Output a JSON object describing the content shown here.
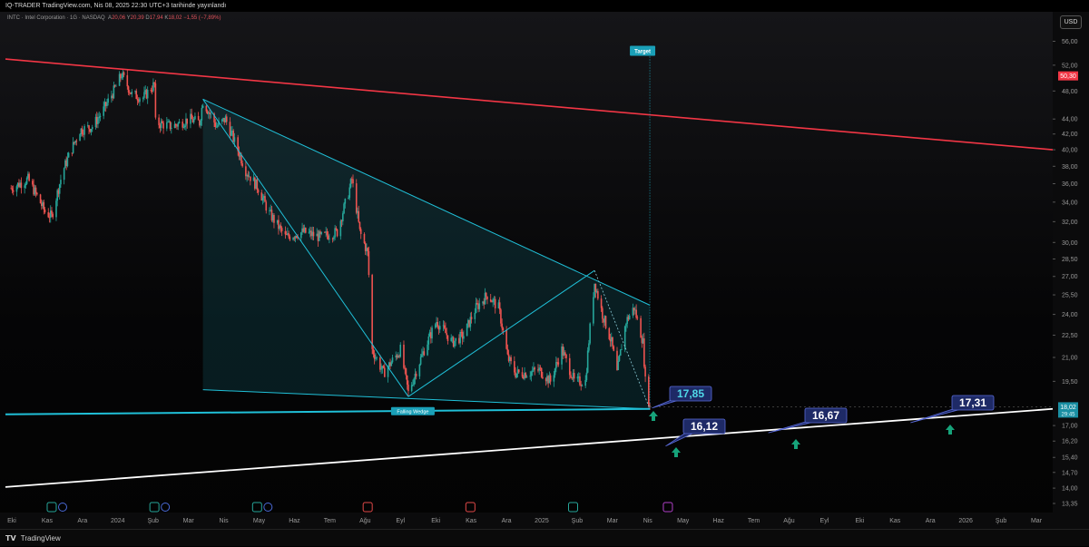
{
  "header": {
    "publisher_line": "IQ-TRADER TradingView.com, Nis 08, 2025 22:30 UTC+3 tarihinde yayınlandı"
  },
  "legend": {
    "symbol_line": "INTC · Intel Corporation · 1G · NASDAQ",
    "open_label": "A",
    "open_value": "20,06",
    "high_label": "Y",
    "high_value": "20,39",
    "low_label": "D",
    "low_value": "17,94",
    "close_label": "K",
    "close_value": "18,02",
    "change_value": "−1,55 (−7,89%)"
  },
  "currency_button": "USD",
  "footer": {
    "brand": "TradingView"
  },
  "annotations": {
    "target_label": "Target",
    "pattern_label": "Falling Wedge",
    "level_1": "17,85",
    "level_2": "16,12",
    "level_3": "16,67",
    "level_4": "17,31"
  },
  "price_tags": {
    "red_line_value": "50,30",
    "last_price": "18,02",
    "countdown": "29:45"
  },
  "colors": {
    "up": "#26a69a",
    "down": "#ef5350",
    "resistance": "#f23645",
    "wedge": "#20c0d8",
    "support": "#ffffff"
  },
  "chart_data": {
    "type": "candlestick",
    "y_scale": "log",
    "ylim": [
      13.35,
      60
    ],
    "y_ticks": [
      "56,00",
      "52,00",
      "48,00",
      "44,00",
      "42,00",
      "40,00",
      "38,00",
      "36,00",
      "34,00",
      "32,00",
      "30,00",
      "28,50",
      "27,00",
      "25,50",
      "24,00",
      "22,50",
      "21,00",
      "19,50",
      "17,00",
      "16,20",
      "15,40",
      "14,70",
      "14,00",
      "13,35"
    ],
    "x_ticks": [
      "Eki",
      "Kas",
      "Ara",
      "2024",
      "Şub",
      "Mar",
      "Nis",
      "May",
      "Haz",
      "Tem",
      "Ağu",
      "Eyl",
      "Eki",
      "Kas",
      "Ara",
      "2025",
      "Şub",
      "Mar",
      "Nis",
      "May",
      "Haz",
      "Tem",
      "Ağu",
      "Eyl",
      "Eki",
      "Kas",
      "Ara",
      "2026",
      "Şub",
      "Mar"
    ],
    "x_range": [
      "2023-09-15",
      "2026-03-31"
    ],
    "price_path": [
      [
        "2023-09-20",
        35.5
      ],
      [
        "2023-10-05",
        36.5
      ],
      [
        "2023-10-20",
        33.0
      ],
      [
        "2023-10-26",
        32.5
      ],
      [
        "2023-11-05",
        37.5
      ],
      [
        "2023-11-20",
        42.5
      ],
      [
        "2023-12-01",
        43.0
      ],
      [
        "2023-12-10",
        45.0
      ],
      [
        "2023-12-20",
        48.0
      ],
      [
        "2023-12-27",
        50.5
      ],
      [
        "2024-01-05",
        47.5
      ],
      [
        "2024-01-15",
        47.0
      ],
      [
        "2024-01-25",
        49.0
      ],
      [
        "2024-01-26",
        43.5
      ],
      [
        "2024-02-10",
        43.0
      ],
      [
        "2024-02-25",
        44.0
      ],
      [
        "2024-03-05",
        43.5
      ],
      [
        "2024-03-08",
        46.5
      ],
      [
        "2024-03-20",
        43.0
      ],
      [
        "2024-03-28",
        44.0
      ],
      [
        "2024-04-05",
        41.0
      ],
      [
        "2024-04-15",
        37.5
      ],
      [
        "2024-04-26",
        35.5
      ],
      [
        "2024-05-05",
        33.0
      ],
      [
        "2024-05-20",
        30.5
      ],
      [
        "2024-06-05",
        31.0
      ],
      [
        "2024-06-20",
        30.5
      ],
      [
        "2024-07-05",
        31.0
      ],
      [
        "2024-07-15",
        35.0
      ],
      [
        "2024-07-18",
        36.5
      ],
      [
        "2024-07-25",
        31.0
      ],
      [
        "2024-08-01",
        29.0
      ],
      [
        "2024-08-05",
        21.5
      ],
      [
        "2024-08-15",
        20.0
      ],
      [
        "2024-08-30",
        21.5
      ],
      [
        "2024-09-06",
        18.8
      ],
      [
        "2024-09-20",
        21.5
      ],
      [
        "2024-10-01",
        23.5
      ],
      [
        "2024-10-15",
        22.0
      ],
      [
        "2024-10-25",
        22.5
      ],
      [
        "2024-11-05",
        24.5
      ],
      [
        "2024-11-15",
        25.5
      ],
      [
        "2024-11-25",
        24.5
      ],
      [
        "2024-12-03",
        21.0
      ],
      [
        "2024-12-10",
        20.0
      ],
      [
        "2024-12-20",
        20.0
      ],
      [
        "2024-12-31",
        20.2
      ],
      [
        "2025-01-10",
        19.5
      ],
      [
        "2025-01-20",
        21.5
      ],
      [
        "2025-01-31",
        19.5
      ],
      [
        "2025-02-10",
        19.5
      ],
      [
        "2025-02-18",
        26.5
      ],
      [
        "2025-02-25",
        24.0
      ],
      [
        "2025-03-05",
        22.0
      ],
      [
        "2025-03-10",
        20.0
      ],
      [
        "2025-03-18",
        23.5
      ],
      [
        "2025-03-25",
        24.5
      ],
      [
        "2025-04-02",
        22.0
      ],
      [
        "2025-04-04",
        19.5
      ],
      [
        "2025-04-08",
        18.02
      ]
    ],
    "lines": [
      {
        "role": "resistance",
        "from": [
          "2023-09-15",
          53.0
        ],
        "to": [
          "2026-03-31",
          40.0
        ]
      },
      {
        "role": "wedge-upper",
        "from": [
          "2024-03-08",
          46.8
        ],
        "to": [
          "2025-04-08",
          24.7
        ]
      },
      {
        "role": "wedge-lower",
        "from": [
          "2024-03-08",
          19.0
        ],
        "to": [
          "2025-04-08",
          17.9
        ]
      },
      {
        "role": "wedge-inner-1",
        "from": [
          "2024-03-08",
          46.8
        ],
        "to": [
          "2024-09-06",
          18.6
        ]
      },
      {
        "role": "wedge-inner-2",
        "from": [
          "2024-09-06",
          18.6
        ],
        "to": [
          "2025-02-18",
          27.5
        ]
      },
      {
        "role": "wedge-base",
        "from": [
          "2023-09-15",
          17.6
        ],
        "to": [
          "2025-04-08",
          17.9
        ]
      },
      {
        "role": "support",
        "from": [
          "2023-09-15",
          14.05
        ],
        "to": [
          "2026-03-31",
          17.9
        ]
      }
    ],
    "target_date": "2025-04-08",
    "target_price": 52.5,
    "levels": [
      17.85,
      16.12,
      16.67,
      17.31
    ],
    "earnings_markers": [
      "2023-10-26",
      "2024-01-25",
      "2024-04-25",
      "2024-08-01",
      "2024-10-31",
      "2025-01-30",
      "2025-04-24"
    ]
  }
}
